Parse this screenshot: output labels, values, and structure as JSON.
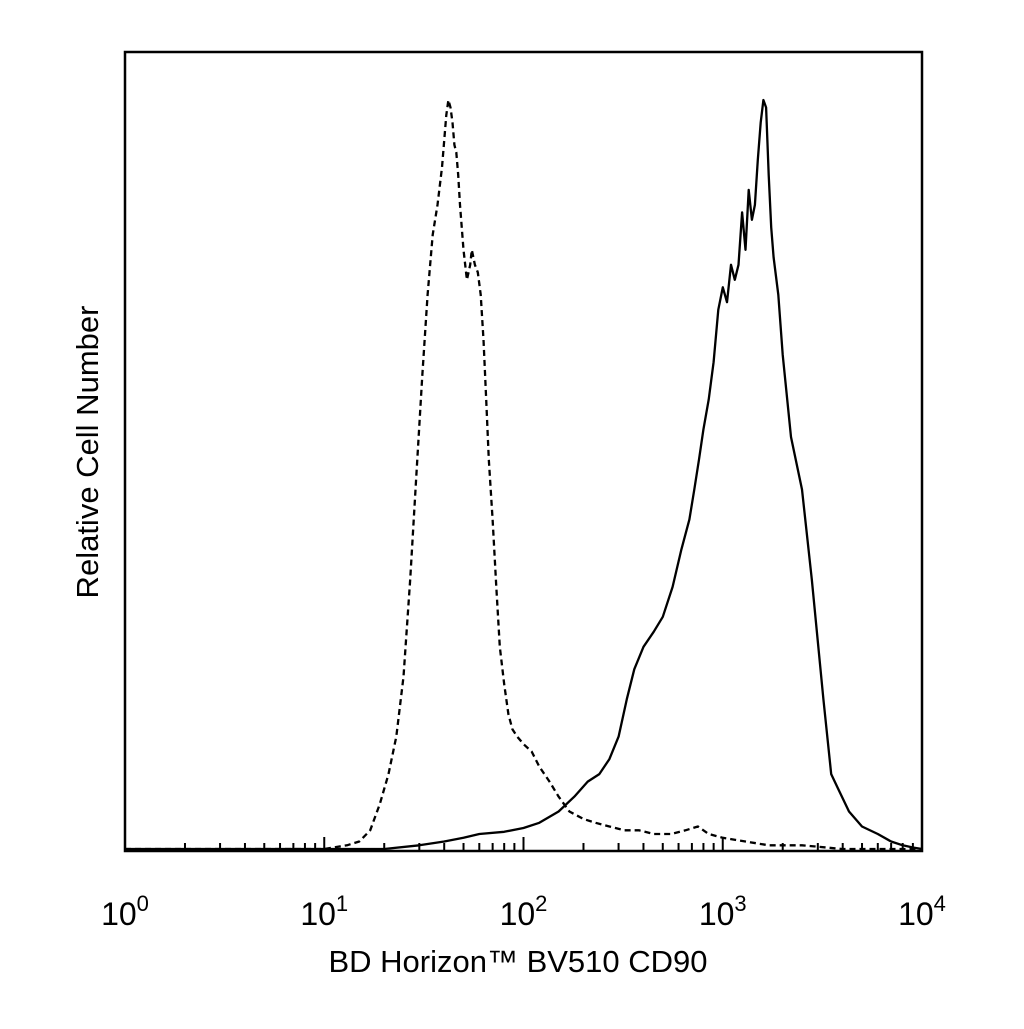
{
  "chart_data": {
    "type": "line",
    "title": "",
    "xlabel": "BD Horizon™ BV510 CD90",
    "ylabel": "Relative Cell Number",
    "x_scale": "log",
    "xlim": [
      1,
      10000
    ],
    "ylim": [
      0,
      100
    ],
    "grid": false,
    "x_ticks": [
      {
        "value": 1,
        "base": "10",
        "exp": "0"
      },
      {
        "value": 10,
        "base": "10",
        "exp": "1"
      },
      {
        "value": 100,
        "base": "10",
        "exp": "2"
      },
      {
        "value": 1000,
        "base": "10",
        "exp": "3"
      },
      {
        "value": 10000,
        "base": "10",
        "exp": "4"
      }
    ],
    "series": [
      {
        "style": "dashed",
        "color": "#000000",
        "x": [
          1,
          10,
          13,
          15,
          17,
          19,
          21,
          23,
          25,
          27,
          29,
          31,
          33,
          35,
          37,
          39,
          41,
          42,
          43,
          44,
          45,
          46,
          47,
          48,
          50,
          52,
          54,
          55,
          57,
          59,
          61,
          63,
          65,
          67,
          70,
          73,
          76,
          80,
          84,
          88,
          93,
          100,
          110,
          120,
          135,
          150,
          170,
          200,
          230,
          270,
          320,
          380,
          450,
          550,
          650,
          750,
          850,
          1000,
          1300,
          1700,
          2500,
          4000,
          6000,
          8000,
          10000
        ],
        "y": [
          0,
          0,
          0.5,
          1,
          2.5,
          6,
          10,
          15,
          23,
          36,
          50,
          63,
          74,
          82,
          86,
          91,
          98,
          100,
          99,
          97,
          94,
          93,
          90,
          86,
          80,
          76,
          78,
          80,
          78,
          77,
          74,
          68,
          60,
          52,
          44,
          35,
          27,
          22,
          18,
          16,
          15,
          14,
          13,
          11,
          9,
          7,
          5,
          4,
          3.5,
          3,
          2.5,
          2.5,
          2,
          2,
          2.5,
          3,
          2,
          1.5,
          1,
          0.5,
          0.5,
          0,
          0,
          0,
          0
        ]
      },
      {
        "style": "solid",
        "color": "#000000",
        "x": [
          1,
          20,
          30,
          40,
          50,
          60,
          80,
          100,
          120,
          150,
          180,
          210,
          240,
          270,
          300,
          330,
          360,
          400,
          450,
          500,
          560,
          620,
          680,
          720,
          760,
          800,
          850,
          900,
          950,
          1000,
          1050,
          1100,
          1150,
          1200,
          1250,
          1300,
          1350,
          1400,
          1450,
          1500,
          1550,
          1600,
          1650,
          1700,
          1750,
          1800,
          1900,
          2000,
          2200,
          2500,
          2800,
          3200,
          3500,
          3800,
          4300,
          5000,
          6000,
          7000,
          8000,
          9000,
          10000
        ],
        "y": [
          0,
          0,
          0.5,
          1,
          1.5,
          2,
          2.3,
          2.8,
          3.5,
          5,
          7,
          9,
          10,
          12,
          15,
          20,
          24,
          27,
          29,
          31,
          35,
          40,
          44,
          48,
          52,
          56,
          60,
          65,
          72,
          75,
          73,
          78,
          76,
          78,
          85,
          80,
          88,
          84,
          86,
          92,
          97,
          100,
          99,
          90,
          83,
          79,
          74,
          66,
          55,
          48,
          36,
          20,
          10,
          8,
          5,
          3,
          2,
          1,
          0.5,
          0.2,
          0
        ]
      }
    ]
  }
}
